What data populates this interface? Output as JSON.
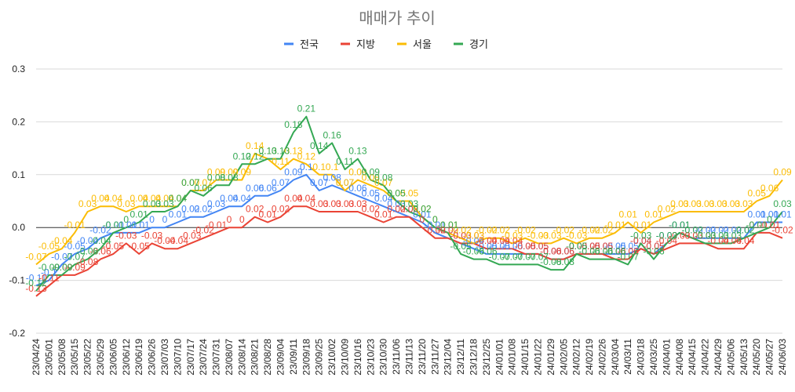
{
  "chart_data": {
    "type": "line",
    "title": "매매가 추이",
    "xlabel": "",
    "ylabel": "",
    "ylim": [
      -0.2,
      0.3
    ],
    "yticks": [
      "-0.2",
      "-0.1",
      "0.0",
      "0.1",
      "0.2",
      "0.3"
    ],
    "ytick_values": [
      -0.2,
      -0.1,
      0.0,
      0.1,
      0.2,
      0.3
    ],
    "legend_position": "top",
    "grid": true,
    "categories": [
      "23/04/24",
      "23/05/01",
      "23/05/08",
      "23/05/15",
      "23/05/22",
      "23/05/29",
      "23/06/05",
      "23/06/12",
      "23/06/19",
      "23/06/26",
      "23/07/03",
      "23/07/10",
      "23/07/17",
      "23/07/24",
      "23/07/31",
      "23/08/07",
      "23/08/14",
      "23/08/21",
      "23/08/28",
      "23/09/04",
      "23/09/11",
      "23/09/18",
      "23/09/25",
      "23/10/02",
      "23/10/09",
      "23/10/16",
      "23/10/23",
      "23/10/30",
      "23/11/06",
      "23/11/13",
      "23/11/20",
      "23/11/27",
      "23/12/04",
      "23/12/11",
      "23/12/18",
      "23/12/25",
      "24/01/01",
      "24/01/08",
      "24/01/15",
      "24/01/22",
      "24/01/29",
      "24/02/05",
      "24/02/12",
      "24/02/19",
      "24/02/26",
      "24/03/04",
      "24/03/11",
      "24/03/18",
      "24/03/25",
      "24/04/01",
      "24/04/08",
      "24/04/15",
      "24/04/22",
      "24/04/29",
      "24/05/06",
      "24/05/13",
      "24/05/20",
      "24/05/27",
      "24/06/03"
    ],
    "xtick_labels": [
      "23/04/24",
      "23/05/01",
      "23/05/08",
      "23/05/15",
      "23/05/22",
      "23/05/29",
      "23/06/05",
      "23/06/12",
      "23/06/19",
      "23/06/26",
      "23/07/03",
      "23/07/10",
      "23/07/17",
      "23/07/24",
      "23/07/31",
      "23/08/07",
      "23/08/14",
      "23/08/21",
      "23/08/28",
      "23/09/04",
      "23/09/11",
      "23/09/18",
      "23/09/25",
      "23/10/02",
      "23/10/09",
      "23/10/16",
      "23/10/23",
      "23/10/30",
      "23/11/06",
      "23/11/13",
      "23/11/20",
      "23/11/27",
      "23/12/04",
      "23/12/11",
      "23/12/18",
      "23/12/25",
      "24/01/01",
      "24/01/08",
      "24/01/15",
      "24/01/22",
      "24/01/29",
      "24/02/05",
      "24/02/12",
      "24/02/19",
      "24/02/26",
      "24/03/04",
      "24/03/11",
      "24/03/18",
      "24/03/25",
      "24/04/01",
      "24/04/08",
      "24/04/15",
      "24/04/22",
      "24/04/29",
      "24/05/06",
      "24/05/13",
      "24/05/20",
      "24/05/27",
      "24/06/03"
    ],
    "series": [
      {
        "name": "전국",
        "color": "#4285f4",
        "values": [
          -0.11,
          -0.1,
          -0.07,
          -0.05,
          -0.04,
          -0.02,
          -0.01,
          -0.01,
          -0.01,
          0.0,
          0.0,
          0.01,
          0.02,
          0.02,
          0.03,
          0.04,
          0.04,
          0.06,
          0.06,
          0.07,
          0.09,
          0.1,
          0.07,
          0.08,
          0.07,
          0.06,
          0.05,
          0.04,
          0.03,
          0.02,
          0.01,
          -0.01,
          -0.02,
          -0.03,
          -0.04,
          -0.05,
          -0.05,
          -0.05,
          -0.05,
          -0.05,
          -0.06,
          -0.06,
          -0.05,
          -0.05,
          -0.05,
          -0.05,
          -0.05,
          -0.04,
          -0.05,
          -0.03,
          -0.01,
          -0.02,
          -0.02,
          -0.02,
          -0.02,
          -0.02,
          0.01,
          0.01,
          0.01
        ]
      },
      {
        "name": "지방",
        "color": "#ea4335",
        "values": [
          -0.13,
          -0.11,
          -0.09,
          -0.09,
          -0.08,
          -0.06,
          -0.05,
          -0.03,
          -0.05,
          -0.03,
          -0.04,
          -0.04,
          -0.03,
          -0.02,
          -0.01,
          0.0,
          0.0,
          0.02,
          0.01,
          0.02,
          0.04,
          0.04,
          0.03,
          0.03,
          0.03,
          0.03,
          0.02,
          0.01,
          0.02,
          0.02,
          0.0,
          -0.02,
          -0.02,
          -0.03,
          -0.03,
          -0.04,
          -0.04,
          -0.04,
          -0.05,
          -0.05,
          -0.06,
          -0.06,
          -0.05,
          -0.05,
          -0.05,
          -0.06,
          -0.06,
          -0.04,
          -0.05,
          -0.04,
          -0.03,
          -0.03,
          -0.03,
          -0.04,
          -0.04,
          -0.04,
          -0.01,
          -0.01,
          -0.02
        ]
      },
      {
        "name": "서울",
        "color": "#fbbc04",
        "values": [
          -0.07,
          -0.05,
          -0.04,
          -0.01,
          0.03,
          0.04,
          0.04,
          0.03,
          0.04,
          0.04,
          0.04,
          0.04,
          0.07,
          0.07,
          0.09,
          0.09,
          0.09,
          0.14,
          0.13,
          0.11,
          0.13,
          0.12,
          0.1,
          0.1,
          0.07,
          0.09,
          0.08,
          0.07,
          0.05,
          0.05,
          0.02,
          0.0,
          -0.01,
          -0.02,
          -0.03,
          -0.02,
          -0.02,
          -0.03,
          -0.02,
          -0.03,
          -0.03,
          -0.02,
          -0.03,
          -0.02,
          -0.02,
          -0.01,
          0.01,
          -0.01,
          0.01,
          0.02,
          0.03,
          0.03,
          0.03,
          0.03,
          0.03,
          0.03,
          0.05,
          0.06,
          0.09
        ]
      },
      {
        "name": "경기",
        "color": "#34a853",
        "values": [
          -0.12,
          -0.09,
          -0.09,
          -0.07,
          -0.06,
          -0.04,
          -0.01,
          0.0,
          0.01,
          0.03,
          0.03,
          0.04,
          0.07,
          0.06,
          0.08,
          0.08,
          0.12,
          0.12,
          0.13,
          0.13,
          0.18,
          0.21,
          0.14,
          0.16,
          0.11,
          0.13,
          0.09,
          0.08,
          0.05,
          0.03,
          0.02,
          0.0,
          -0.01,
          -0.05,
          -0.06,
          -0.06,
          -0.07,
          -0.07,
          -0.07,
          -0.07,
          -0.08,
          -0.08,
          -0.05,
          -0.06,
          -0.06,
          -0.06,
          -0.07,
          -0.03,
          -0.06,
          -0.03,
          -0.01,
          -0.02,
          -0.03,
          -0.03,
          -0.03,
          -0.02,
          -0.01,
          0.0,
          0.03
        ]
      }
    ]
  }
}
